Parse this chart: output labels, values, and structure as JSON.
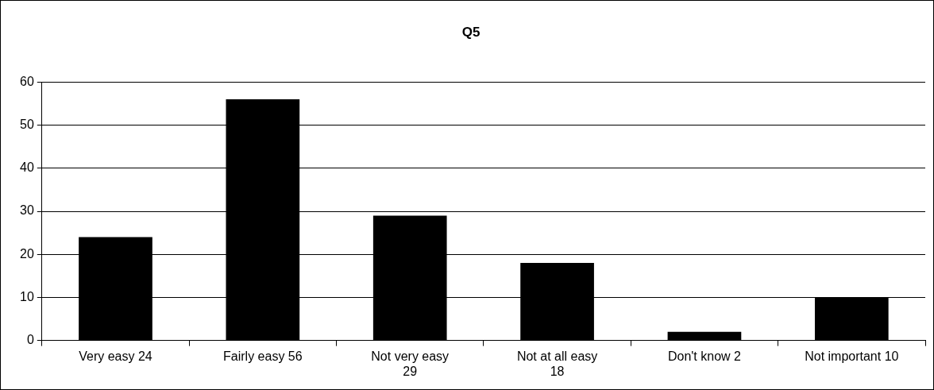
{
  "chart_data": {
    "type": "bar",
    "title": "Q5",
    "categories": [
      "Very easy 24",
      "Fairly easy 56",
      "Not very easy\n29",
      "Not at all easy\n18",
      "Don't know 2",
      "Not important 10"
    ],
    "values": [
      24,
      56,
      29,
      18,
      2,
      10
    ],
    "color": "#000000",
    "ylim": [
      0,
      60
    ],
    "yticks": [
      0,
      10,
      20,
      30,
      40,
      50,
      60
    ],
    "grid": "y",
    "legend": false
  }
}
